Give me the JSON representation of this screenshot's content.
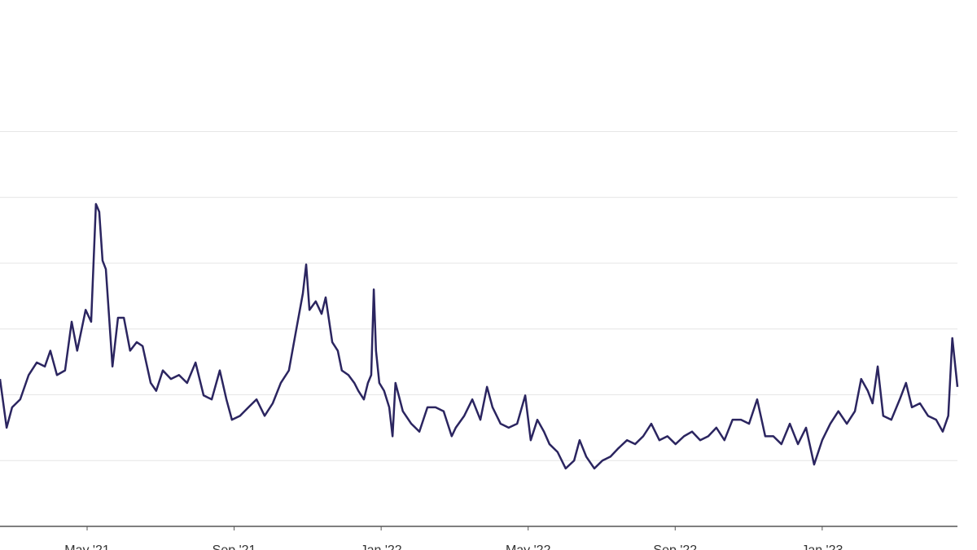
{
  "chart_data": {
    "type": "line",
    "x": [
      1.63,
      1.81,
      1.96,
      2.18,
      2.41,
      2.63,
      2.85,
      3.0,
      3.18,
      3.4,
      3.58,
      3.73,
      3.96,
      4.11,
      4.24,
      4.33,
      4.42,
      4.51,
      4.69,
      4.84,
      5.0,
      5.17,
      5.35,
      5.51,
      5.73,
      5.88,
      6.06,
      6.28,
      6.5,
      6.72,
      6.95,
      7.17,
      7.39,
      7.61,
      7.79,
      7.94,
      8.16,
      8.39,
      8.61,
      8.83,
      9.05,
      9.27,
      9.49,
      9.71,
      9.87,
      9.96,
      10.05,
      10.22,
      10.38,
      10.49,
      10.67,
      10.82,
      10.93,
      11.11,
      11.27,
      11.38,
      11.53,
      11.64,
      11.73,
      11.8,
      11.86,
      11.95,
      12.08,
      12.22,
      12.31,
      12.39,
      12.59,
      12.82,
      13.04,
      13.26,
      13.48,
      13.7,
      13.92,
      14.03,
      14.26,
      14.48,
      14.7,
      14.88,
      15.03,
      15.25,
      15.47,
      15.7,
      15.92,
      16.07,
      16.25,
      16.43,
      16.58,
      16.8,
      17.02,
      17.25,
      17.4,
      17.58,
      17.8,
      18.02,
      18.24,
      18.46,
      18.69,
      18.91,
      19.13,
      19.35,
      19.57,
      19.79,
      20.01,
      20.24,
      20.46,
      20.68,
      20.9,
      21.12,
      21.34,
      21.56,
      21.79,
      22.01,
      22.23,
      22.45,
      22.67,
      22.89,
      23.12,
      23.34,
      23.56,
      23.78,
      24.0,
      24.22,
      24.44,
      24.67,
      24.89,
      25.06,
      25.24,
      25.37,
      25.51,
      25.66,
      25.88,
      26.11,
      26.28,
      26.44,
      26.66,
      26.88,
      27.1,
      27.28,
      27.43,
      27.54,
      27.68
    ],
    "series": [
      {
        "color": "#2b2560",
        "values": [
          2.24,
          1.5,
          1.81,
          1.93,
          2.3,
          2.49,
          2.43,
          2.67,
          2.3,
          2.37,
          3.11,
          2.67,
          3.29,
          3.11,
          4.9,
          4.78,
          4.04,
          3.91,
          2.43,
          3.17,
          3.17,
          2.67,
          2.8,
          2.74,
          2.18,
          2.06,
          2.37,
          2.24,
          2.3,
          2.18,
          2.49,
          1.99,
          1.93,
          2.37,
          1.93,
          1.62,
          1.68,
          1.81,
          1.93,
          1.68,
          1.87,
          2.18,
          2.37,
          3.05,
          3.54,
          3.98,
          3.29,
          3.42,
          3.23,
          3.48,
          2.8,
          2.67,
          2.37,
          2.3,
          2.18,
          2.06,
          1.93,
          2.18,
          2.3,
          3.6,
          2.67,
          2.18,
          2.06,
          1.81,
          1.37,
          2.18,
          1.75,
          1.56,
          1.44,
          1.81,
          1.81,
          1.75,
          1.37,
          1.5,
          1.68,
          1.93,
          1.62,
          2.12,
          1.81,
          1.56,
          1.5,
          1.56,
          1.99,
          1.31,
          1.62,
          1.44,
          1.25,
          1.13,
          0.88,
          1.0,
          1.31,
          1.06,
          0.88,
          1.0,
          1.06,
          1.19,
          1.31,
          1.25,
          1.37,
          1.56,
          1.31,
          1.37,
          1.25,
          1.37,
          1.44,
          1.31,
          1.37,
          1.5,
          1.31,
          1.62,
          1.62,
          1.56,
          1.93,
          1.37,
          1.37,
          1.25,
          1.56,
          1.25,
          1.5,
          0.94,
          1.31,
          1.56,
          1.75,
          1.56,
          1.75,
          2.24,
          2.06,
          1.87,
          2.43,
          1.68,
          1.62,
          1.93,
          2.18,
          1.81,
          1.87,
          1.68,
          1.62,
          1.44,
          1.68,
          2.86,
          2.12
        ]
      }
    ],
    "xlim": [
      1.63,
      27.68
    ],
    "xticks": [
      {
        "value": 4,
        "label": "May '21"
      },
      {
        "value": 8,
        "label": "Sep '21"
      },
      {
        "value": 12,
        "label": "Jan '22"
      },
      {
        "value": 16,
        "label": "May '22"
      },
      {
        "value": 20,
        "label": "Sep '22"
      },
      {
        "value": 24,
        "label": "Jan '23"
      }
    ],
    "ylim": [
      0,
      8
    ],
    "yticks": [
      1,
      2,
      3,
      4,
      5,
      6
    ],
    "grid": true
  }
}
